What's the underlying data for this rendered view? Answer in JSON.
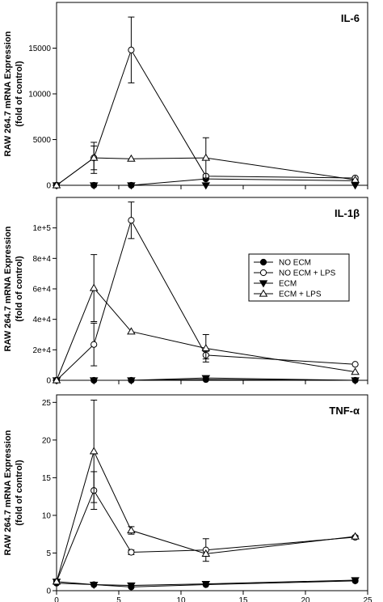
{
  "chart_data": [
    {
      "type": "line",
      "title": "IL-6",
      "ylabel": [
        "RAW 264.7 mRNA Expression",
        "(fold of control)"
      ],
      "xlim": [
        0,
        25
      ],
      "ylim": [
        0,
        20000
      ],
      "yticks": [
        0,
        5000,
        10000,
        15000
      ],
      "ytick_labels": [
        "0",
        "5000",
        "10000",
        "15000"
      ],
      "x": [
        0,
        3,
        6,
        12,
        24
      ],
      "series": [
        {
          "name": "NO ECM",
          "marker": "filled-circle",
          "values": [
            0,
            0,
            0,
            700,
            500
          ],
          "errors": [
            0,
            0,
            0,
            0,
            0
          ]
        },
        {
          "name": "NO ECM + LPS",
          "marker": "open-circle",
          "values": [
            0,
            3000,
            14800,
            1000,
            800
          ],
          "errors": [
            0,
            1700,
            3600,
            150,
            100
          ]
        },
        {
          "name": "ECM",
          "marker": "filled-triangle-down",
          "values": [
            0,
            0,
            0,
            0,
            0
          ],
          "errors": [
            0,
            0,
            0,
            0,
            0
          ]
        },
        {
          "name": "ECM + LPS",
          "marker": "open-triangle-up",
          "values": [
            0,
            3000,
            2900,
            3000,
            600
          ],
          "errors": [
            0,
            1300,
            0,
            2200,
            0
          ]
        }
      ]
    },
    {
      "type": "line",
      "title": "IL-1β",
      "ylabel": [
        "RAW 264.7 mRNA Expression",
        "(fold of control)"
      ],
      "xlim": [
        0,
        25
      ],
      "ylim": [
        0,
        120000
      ],
      "yticks": [
        0,
        20000,
        40000,
        60000,
        80000,
        100000
      ],
      "ytick_labels": [
        "0",
        "2e+4",
        "4e+4",
        "6e+4",
        "8e+4",
        "1e+5"
      ],
      "legend_position": "center-right",
      "x": [
        0,
        3,
        6,
        12,
        24
      ],
      "series": [
        {
          "name": "NO ECM",
          "marker": "filled-circle",
          "values": [
            0,
            0,
            0,
            500,
            0
          ],
          "errors": [
            0,
            0,
            0,
            0,
            0
          ]
        },
        {
          "name": "NO ECM + LPS",
          "marker": "open-circle",
          "values": [
            0,
            23500,
            105000,
            16500,
            10500
          ],
          "errors": [
            0,
            14000,
            12000,
            2500,
            0
          ]
        },
        {
          "name": "ECM",
          "marker": "filled-triangle-down",
          "values": [
            0,
            0,
            0,
            1500,
            0
          ],
          "errors": [
            0,
            0,
            0,
            0,
            0
          ]
        },
        {
          "name": "ECM + LPS",
          "marker": "open-triangle-up",
          "values": [
            0,
            60500,
            32000,
            21000,
            5500
          ],
          "errors": [
            0,
            22000,
            0,
            9000,
            0
          ]
        }
      ]
    },
    {
      "type": "line",
      "title": "TNF-α",
      "ylabel": [
        "RAW 264.7 mRNA Expression",
        "(fold of control)"
      ],
      "xlim": [
        0,
        25
      ],
      "ylim": [
        0,
        26
      ],
      "yticks": [
        0,
        5,
        10,
        15,
        20,
        25
      ],
      "ytick_labels": [
        "0",
        "5",
        "10",
        "15",
        "20",
        "25"
      ],
      "xticks": [
        0,
        5,
        10,
        15,
        20,
        25
      ],
      "xtick_labels": [
        "0",
        "5",
        "10",
        "15",
        "20",
        "25"
      ],
      "x": [
        0,
        3,
        6,
        12,
        24
      ],
      "series": [
        {
          "name": "NO ECM",
          "marker": "filled-circle",
          "values": [
            1.0,
            0.8,
            0.5,
            0.8,
            1.3
          ],
          "errors": [
            0,
            0,
            0,
            0,
            0
          ]
        },
        {
          "name": "NO ECM + LPS",
          "marker": "open-circle",
          "values": [
            1.2,
            13.3,
            5.1,
            5.4,
            7.1
          ],
          "errors": [
            0,
            2.5,
            0.3,
            1.5,
            0.2
          ]
        },
        {
          "name": "ECM",
          "marker": "filled-triangle-down",
          "values": [
            1.2,
            0.8,
            0.7,
            0.9,
            1.4
          ],
          "errors": [
            0,
            0,
            0,
            0,
            0
          ]
        },
        {
          "name": "ECM + LPS",
          "marker": "open-triangle-up",
          "values": [
            1.2,
            18.5,
            8.0,
            4.9,
            7.2
          ],
          "errors": [
            0,
            6.8,
            0.5,
            0,
            0
          ]
        }
      ]
    }
  ]
}
